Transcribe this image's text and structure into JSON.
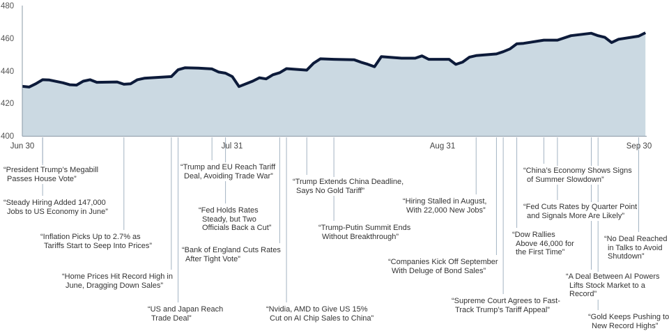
{
  "chart_data": {
    "type": "area",
    "title": "",
    "xlabel": "",
    "ylabel": "",
    "ylim": [
      400,
      480
    ],
    "yticks": [
      "400",
      "420",
      "440",
      "460",
      "480"
    ],
    "xticks": [
      "Jun 30",
      "Jul 31",
      "Aug 31",
      "Sep 30"
    ],
    "grid": false,
    "colors": {
      "line": "#0d1b3a",
      "fill": "#cbd9e2",
      "annotation_line": "#a3b3c2"
    },
    "points": [
      [
        "Jun 30",
        430.4
      ],
      [
        "Jul 1",
        430
      ],
      [
        "Jul 2",
        432
      ],
      [
        "Jul 3",
        434.5
      ],
      [
        "Jul 4",
        434.3
      ],
      [
        "Jul 6",
        432.6
      ],
      [
        "Jul 7",
        431.4
      ],
      [
        "Jul 8",
        431.2
      ],
      [
        "Jul 9",
        433.6
      ],
      [
        "Jul 10",
        434.5
      ],
      [
        "Jul 11",
        432.9
      ],
      [
        "Jul 14",
        433.1
      ],
      [
        "Jul 15",
        431.7
      ],
      [
        "Jul 16",
        432
      ],
      [
        "Jul 17",
        434.5
      ],
      [
        "Jul 18",
        435.4
      ],
      [
        "Jul 22",
        436.4
      ],
      [
        "Jul 23",
        440.6
      ],
      [
        "Jul 24",
        441.8
      ],
      [
        "Jul 26",
        441.6
      ],
      [
        "Jul 28",
        441.1
      ],
      [
        "Jul 29",
        439.2
      ],
      [
        "Jul 30",
        438.5
      ],
      [
        "Jul 31",
        436.4
      ],
      [
        "Aug 1",
        430.3
      ],
      [
        "Aug 3",
        433.6
      ],
      [
        "Aug 4",
        435.7
      ],
      [
        "Aug 5",
        435
      ],
      [
        "Aug 6",
        437.5
      ],
      [
        "Aug 7",
        438.8
      ],
      [
        "Aug 8",
        441.3
      ],
      [
        "Aug 11",
        440.4
      ],
      [
        "Aug 12",
        444.6
      ],
      [
        "Aug 13",
        447.3
      ],
      [
        "Aug 15",
        447
      ],
      [
        "Aug 18",
        446.7
      ],
      [
        "Aug 19",
        445.2
      ],
      [
        "Aug 20",
        444
      ],
      [
        "Aug 21",
        442.5
      ],
      [
        "Aug 22",
        448.7
      ],
      [
        "Aug 25",
        447.7
      ],
      [
        "Aug 27",
        447.7
      ],
      [
        "Aug 28",
        449.1
      ],
      [
        "Aug 29",
        447
      ],
      [
        "Sep 1",
        447
      ],
      [
        "Sep 2",
        443.9
      ],
      [
        "Sep 3",
        445.3
      ],
      [
        "Sep 4",
        448.3
      ],
      [
        "Sep 5",
        449.3
      ],
      [
        "Sep 8",
        450.3
      ],
      [
        "Sep 9",
        451.7
      ],
      [
        "Sep 10",
        453.4
      ],
      [
        "Sep 11",
        456.5
      ],
      [
        "Sep 12",
        456.8
      ],
      [
        "Sep 15",
        458.8
      ],
      [
        "Sep 17",
        458.8
      ],
      [
        "Sep 19",
        461.5
      ],
      [
        "Sep 22",
        463
      ],
      [
        "Sep 23",
        461.5
      ],
      [
        "Sep 24",
        460.5
      ],
      [
        "Sep 25",
        457.3
      ],
      [
        "Sep 26",
        459.3
      ],
      [
        "Sep 29",
        461.2
      ],
      [
        "Sep 30",
        463.3
      ]
    ],
    "annotations": [
      {
        "date": "Jul 3",
        "lines": [
          "“President Trump’s Megabill",
          "Passes House Vote”"
        ]
      },
      {
        "date": "Jul 3",
        "lines": [
          "“Steady Hiring Added 147,000",
          "Jobs to US Economy in June”"
        ]
      },
      {
        "date": "Jul 15",
        "lines": [
          "“Inflation Picks Up to 2.7% as",
          "Tariffs Start to Seep Into Prices”"
        ]
      },
      {
        "date": "Jul 22",
        "lines": [
          "“Home Prices Hit Record High in",
          "June, Dragging Down Sales”"
        ]
      },
      {
        "date": "Jul 23",
        "lines": [
          "“US and Japan Reach",
          "Trade Deal”"
        ]
      },
      {
        "date": "Jul 28",
        "lines": [
          "“Trump and EU Reach Tariff",
          "Deal, Avoiding Trade War”"
        ]
      },
      {
        "date": "Jul 30",
        "lines": [
          "“Fed Holds Rates",
          "Steady, but Two",
          "Officials Back a Cut”"
        ]
      },
      {
        "date": "Aug 7",
        "lines": [
          "“Bank of England Cuts Rates",
          "After Tight Vote”"
        ]
      },
      {
        "date": "Aug 8",
        "lines": [
          "“Nvidia, AMD to Give US 15%",
          "Cut on AI Chip Sales to China”"
        ]
      },
      {
        "date": "Aug 11",
        "lines": [
          "“Trump Extends China Deadline,",
          "Says No Gold Tariff”"
        ]
      },
      {
        "date": "Aug 15",
        "lines": [
          "“Trump-Putin Summit Ends",
          "Without Breakthrough”"
        ]
      },
      {
        "date": "Sep 5",
        "lines": [
          "“Hiring Stalled in August,",
          "With 22,000 New Jobs”"
        ]
      },
      {
        "date": "Sep 8",
        "lines": [
          "“Companies Kick Off September",
          "With Deluge of Bond Sales”"
        ]
      },
      {
        "date": "Sep 9",
        "lines": [
          "“Supreme Court Agrees to Fast-",
          "Track Trump’s Tariff Appeal”"
        ]
      },
      {
        "date": "Sep 11",
        "lines": [
          "“Dow Rallies",
          "Above 46,000 for",
          "the First Time”"
        ]
      },
      {
        "date": "Sep 15",
        "lines": [
          "“China’s Economy Shows Signs",
          "of Summer Slowdown”"
        ]
      },
      {
        "date": "Sep 17",
        "lines": [
          "“Fed Cuts Rates by Quarter Point",
          "and Signals More Are Likely”"
        ]
      },
      {
        "date": "Sep 22",
        "lines": [
          "“A Deal Between AI Powers",
          "Lifts Stock Market to a",
          "Record”"
        ]
      },
      {
        "date": "Sep 29",
        "lines": [
          "“No Deal Reached",
          "in Talks to Avoid",
          "Shutdown”"
        ]
      },
      {
        "date": "Sep 23",
        "lines": [
          "“Gold Keeps Pushing to",
          "New Record Highs”"
        ]
      }
    ]
  }
}
